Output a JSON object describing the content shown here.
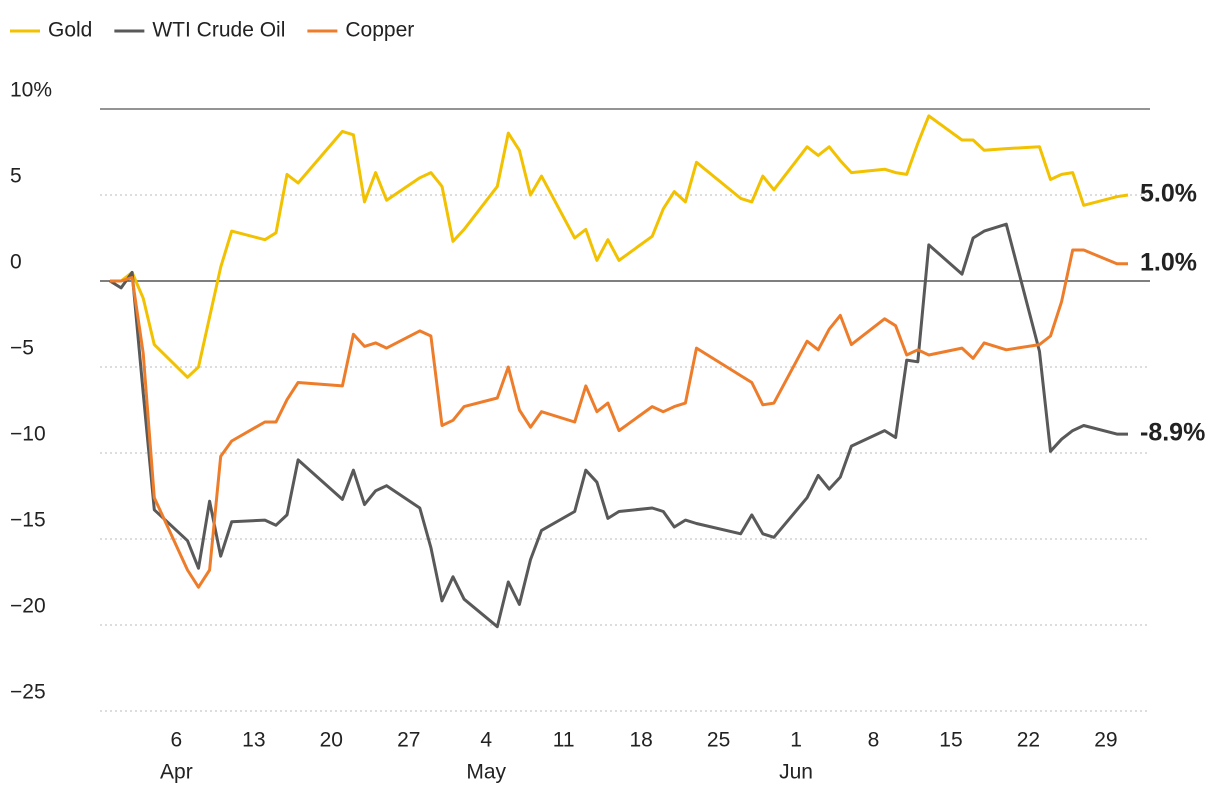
{
  "chart_data": {
    "type": "line",
    "x": [
      "Mar 31",
      "Apr 1",
      "Apr 2",
      "Apr 3",
      "Apr 4",
      "Apr 7",
      "Apr 8",
      "Apr 9",
      "Apr 10",
      "Apr 11",
      "Apr 14",
      "Apr 15",
      "Apr 16",
      "Apr 17",
      "Apr 21",
      "Apr 22",
      "Apr 23",
      "Apr 24",
      "Apr 25",
      "Apr 28",
      "Apr 29",
      "Apr 30",
      "May 1",
      "May 2",
      "May 5",
      "May 6",
      "May 7",
      "May 8",
      "May 9",
      "May 12",
      "May 13",
      "May 14",
      "May 15",
      "May 16",
      "May 19",
      "May 20",
      "May 21",
      "May 22",
      "May 23",
      "May 27",
      "May 28",
      "May 29",
      "May 30",
      "Jun 2",
      "Jun 3",
      "Jun 4",
      "Jun 5",
      "Jun 6",
      "Jun 9",
      "Jun 10",
      "Jun 11",
      "Jun 12",
      "Jun 13",
      "Jun 16",
      "Jun 17",
      "Jun 18",
      "Jun 20",
      "Jun 23",
      "Jun 24",
      "Jun 25",
      "Jun 26",
      "Jun 27",
      "Jun 30",
      "Jul 1"
    ],
    "series": [
      {
        "name": "Gold",
        "color": "#f2c100",
        "label_color": "#8a6d00",
        "end_label": "5.0%",
        "values": [
          0,
          0,
          0.5,
          -1.0,
          -3.7,
          -5.6,
          -5.0,
          -2.1,
          0.8,
          2.9,
          2.4,
          2.8,
          6.2,
          5.7,
          8.7,
          8.5,
          4.6,
          6.3,
          4.7,
          6.0,
          6.3,
          5.5,
          2.3,
          3.0,
          5.5,
          8.6,
          7.6,
          5.0,
          6.1,
          2.5,
          3.0,
          1.2,
          2.4,
          1.2,
          2.6,
          4.2,
          5.2,
          4.6,
          6.9,
          4.8,
          4.6,
          6.1,
          5.3,
          7.8,
          7.3,
          7.8,
          7.0,
          6.3,
          6.5,
          6.3,
          6.2,
          8.0,
          9.6,
          8.2,
          8.2,
          7.6,
          7.7,
          7.8,
          5.9,
          6.2,
          6.3,
          4.4,
          4.9,
          5.0
        ]
      },
      {
        "name": "WTI Crude Oil",
        "color": "#595959",
        "label_color": "#595959",
        "end_label": "-8.9%",
        "values": [
          0,
          -0.4,
          0.5,
          -6.5,
          -13.3,
          -15.1,
          -16.7,
          -12.8,
          -16.0,
          -14.0,
          -13.9,
          -14.2,
          -13.6,
          -10.4,
          -12.7,
          -11.0,
          -13.0,
          -12.2,
          -11.9,
          -13.2,
          -15.5,
          -18.6,
          -17.2,
          -18.5,
          -20.1,
          -17.5,
          -18.8,
          -16.2,
          -14.5,
          -13.4,
          -11.0,
          -11.7,
          -13.8,
          -13.4,
          -13.2,
          -13.4,
          -14.3,
          -13.9,
          -14.1,
          -14.7,
          -13.6,
          -14.7,
          -14.9,
          -12.6,
          -11.3,
          -12.1,
          -11.4,
          -9.6,
          -8.7,
          -9.1,
          -4.6,
          -4.7,
          2.1,
          0.4,
          2.5,
          2.9,
          3.3,
          -4.1,
          -9.9,
          -9.2,
          -8.7,
          -8.4,
          -8.9,
          -8.9
        ]
      },
      {
        "name": "Copper",
        "color": "#ee7d2b",
        "label_color": "#c0560a",
        "end_label": "1.0%",
        "values": [
          0,
          0,
          0.2,
          -4.2,
          -12.6,
          -16.8,
          -17.8,
          -16.8,
          -10.2,
          -9.3,
          -8.2,
          -8.2,
          -6.9,
          -5.9,
          -6.1,
          -3.1,
          -3.8,
          -3.6,
          -3.9,
          -2.9,
          -3.2,
          -8.4,
          -8.1,
          -7.3,
          -6.8,
          -5.0,
          -7.5,
          -8.5,
          -7.6,
          -8.2,
          -6.1,
          -7.6,
          -7.1,
          -8.7,
          -7.3,
          -7.6,
          -7.3,
          -7.1,
          -3.9,
          -5.5,
          -5.9,
          -7.2,
          -7.1,
          -3.5,
          -4.0,
          -2.8,
          -2.0,
          -3.7,
          -2.2,
          -2.6,
          -4.3,
          -4.0,
          -4.3,
          -3.9,
          -4.5,
          -3.6,
          -4.0,
          -3.7,
          -3.2,
          -1.2,
          1.8,
          1.8,
          1.0,
          1.0
        ]
      }
    ],
    "xlim": [
      "Mar 31",
      "Jul 1"
    ],
    "xticks": [
      {
        "value": "Apr 6",
        "label": "6"
      },
      {
        "value": "Apr 13",
        "label": "13"
      },
      {
        "value": "Apr 20",
        "label": "20"
      },
      {
        "value": "Apr 27",
        "label": "27"
      },
      {
        "value": "May 4",
        "label": "4"
      },
      {
        "value": "May 11",
        "label": "11"
      },
      {
        "value": "May 18",
        "label": "18"
      },
      {
        "value": "May 25",
        "label": "25"
      },
      {
        "value": "Jun 1",
        "label": "1"
      },
      {
        "value": "Jun 8",
        "label": "8"
      },
      {
        "value": "Jun 15",
        "label": "15"
      },
      {
        "value": "Jun 22",
        "label": "22"
      },
      {
        "value": "Jun 29",
        "label": "29"
      }
    ],
    "xtick_months": [
      {
        "value": "Apr 6",
        "label": "Apr"
      },
      {
        "value": "May 4",
        "label": "May"
      },
      {
        "value": "Jun 1",
        "label": "Jun"
      }
    ],
    "ylim": [
      -25,
      10
    ],
    "yticks": [
      {
        "value": 10,
        "label": "10%"
      },
      5,
      0,
      {
        "value": -5,
        "label": "−5"
      },
      {
        "value": -10,
        "label": "−10"
      },
      {
        "value": -15,
        "label": "−15"
      },
      {
        "value": -20,
        "label": "−20"
      },
      {
        "value": -25,
        "label": "−25"
      }
    ],
    "grid": true
  }
}
